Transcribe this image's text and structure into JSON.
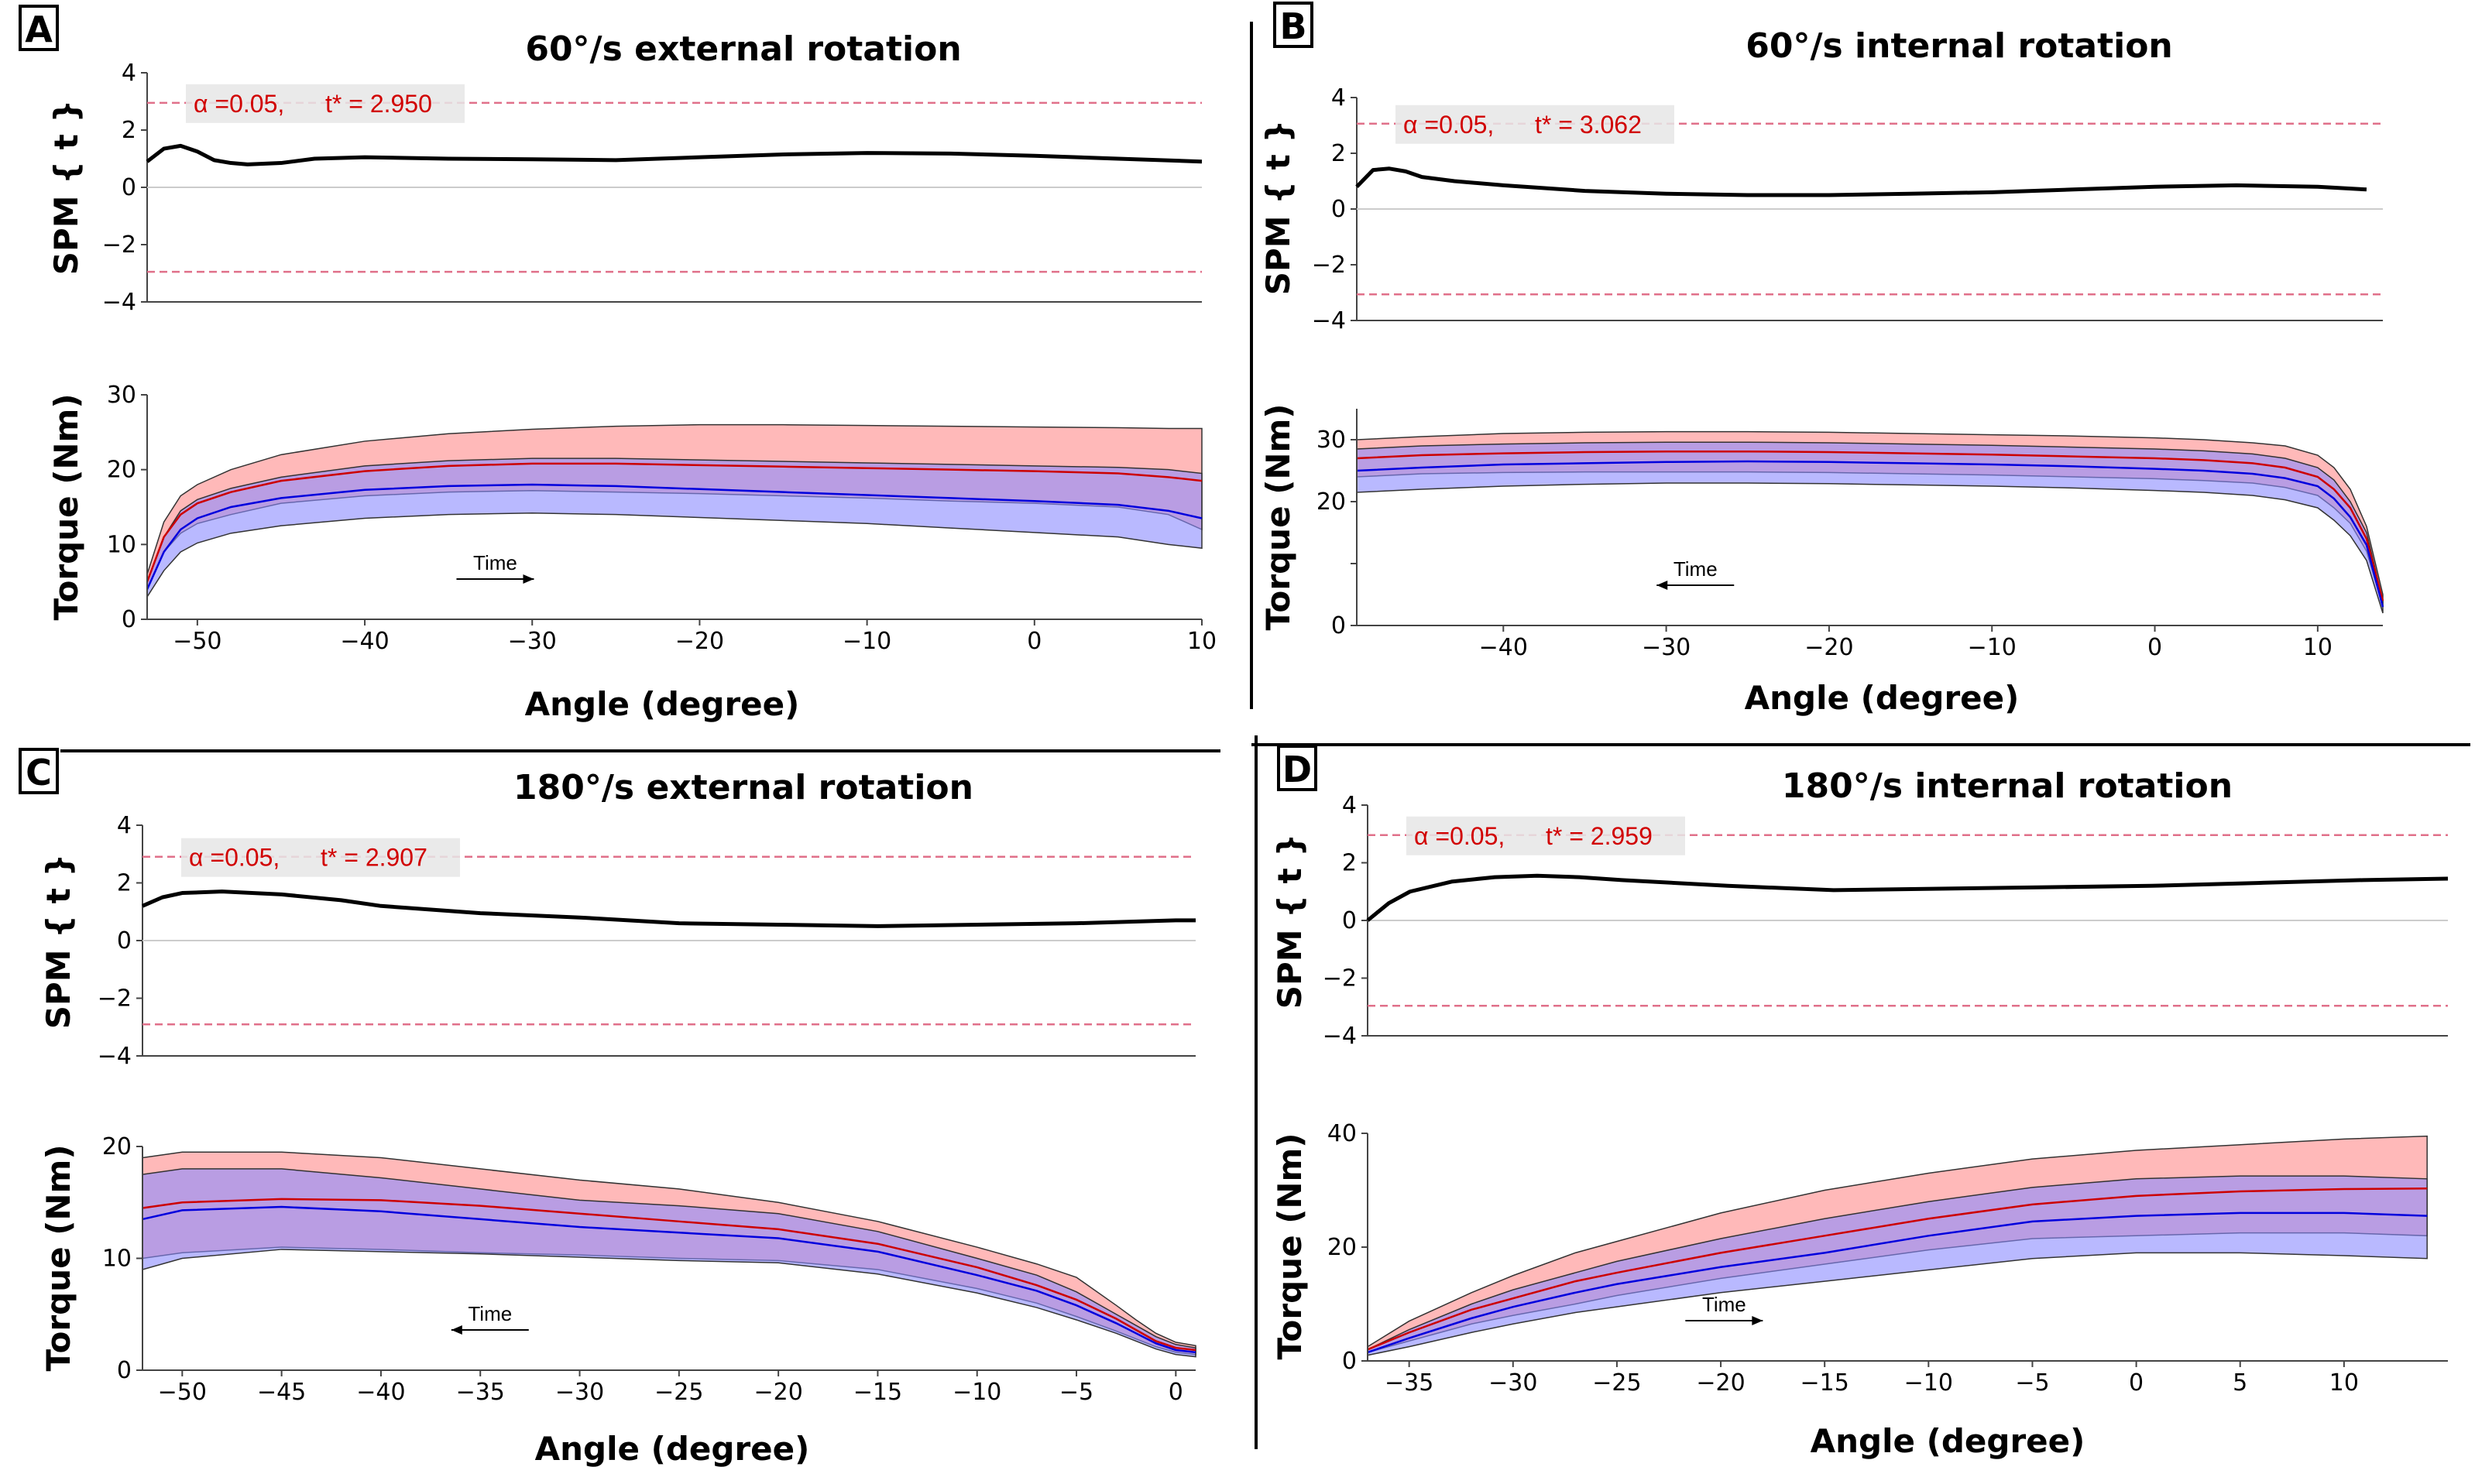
{
  "colors": {
    "spm_line": "#000000",
    "threshold": "#e0708a",
    "threshold_text": "#d10000",
    "threshold_box": "#e6e6e6",
    "zero_line": "#cccccc",
    "red_band": "#ff7f7f",
    "blue_band": "#8a8aff",
    "red_mean": "#cc0000",
    "blue_mean": "#0000dd"
  },
  "chart_data": [
    {
      "id": "A",
      "letter": "A",
      "title": "60°/s external rotation",
      "spm": {
        "type": "line",
        "ylabel": "SPM { t }",
        "ylim": [
          -4,
          4
        ],
        "yticks": [
          "4",
          "2",
          "0",
          "−2",
          "−4"
        ],
        "alpha_label": "α  =0.05,",
        "tstar_label": "t* = 2.950",
        "threshold": 2.95,
        "x": [
          -53,
          -52,
          -51,
          -50,
          -49,
          -48,
          -47,
          -45,
          -43,
          -40,
          -35,
          -30,
          -25,
          -20,
          -15,
          -10,
          -5,
          0,
          5,
          10
        ],
        "t": [
          0.9,
          1.35,
          1.45,
          1.25,
          0.95,
          0.85,
          0.8,
          0.85,
          1.0,
          1.05,
          1.0,
          0.98,
          0.95,
          1.05,
          1.15,
          1.2,
          1.18,
          1.1,
          1.0,
          0.9
        ]
      },
      "torque": {
        "type": "area",
        "ylabel": "Torque (Nm)",
        "xlabel": "Angle (degree)",
        "xlim": [
          -53,
          10
        ],
        "ylim": [
          0,
          30
        ],
        "xticks": [
          -50,
          -40,
          -30,
          -20,
          -10,
          0,
          10
        ],
        "xtick_labels": [
          "−50",
          "−40",
          "−30",
          "−20",
          "−10",
          "0",
          "10"
        ],
        "yticks": [
          0,
          10,
          20,
          30
        ],
        "ytick_labels": [
          "0",
          "10",
          "20",
          "30"
        ],
        "time_label": "Time",
        "time_direction": "right",
        "x": [
          -53,
          -52,
          -51,
          -50,
          -48,
          -45,
          -40,
          -35,
          -30,
          -25,
          -20,
          -15,
          -10,
          -5,
          0,
          5,
          8,
          10
        ],
        "red_mean": [
          5,
          11,
          14,
          15.5,
          17,
          18.5,
          19.8,
          20.5,
          20.8,
          20.8,
          20.6,
          20.4,
          20.2,
          20,
          19.8,
          19.5,
          19,
          18.5
        ],
        "red_upper": [
          6,
          13,
          16.5,
          18,
          20,
          22,
          23.8,
          24.8,
          25.4,
          25.8,
          26,
          26,
          25.9,
          25.8,
          25.7,
          25.6,
          25.5,
          25.5
        ],
        "red_lower": [
          4,
          9,
          11.5,
          12.8,
          14,
          15.5,
          16.5,
          17,
          17.2,
          17,
          16.8,
          16.5,
          16.2,
          15.8,
          15.5,
          15,
          14,
          12
        ],
        "blue_mean": [
          4,
          9,
          12,
          13.5,
          15,
          16.2,
          17.3,
          17.8,
          18,
          17.8,
          17.4,
          17,
          16.6,
          16.2,
          15.8,
          15.3,
          14.5,
          13.5
        ],
        "blue_upper": [
          5,
          11,
          14.5,
          16,
          17.5,
          19,
          20.5,
          21.2,
          21.5,
          21.5,
          21.3,
          21.1,
          20.9,
          20.7,
          20.5,
          20.3,
          20,
          19.5
        ],
        "blue_lower": [
          3,
          6.5,
          9,
          10.2,
          11.5,
          12.5,
          13.5,
          14,
          14.2,
          14,
          13.6,
          13.2,
          12.8,
          12.2,
          11.6,
          11,
          10,
          9.5
        ]
      }
    },
    {
      "id": "B",
      "letter": "B",
      "title": "60°/s internal rotation",
      "spm": {
        "type": "line",
        "ylabel": "SPM { t }",
        "ylim": [
          -4,
          4
        ],
        "yticks": [
          "4",
          "2",
          "0",
          "−2",
          "−4"
        ],
        "alpha_label": "α  =0.05,",
        "tstar_label": "t* = 3.062",
        "threshold": 3.062,
        "x": [
          -49,
          -48,
          -47,
          -46,
          -45,
          -43,
          -40,
          -35,
          -30,
          -25,
          -20,
          -15,
          -10,
          -5,
          0,
          5,
          10,
          13
        ],
        "t": [
          0.8,
          1.4,
          1.45,
          1.35,
          1.15,
          1.0,
          0.85,
          0.65,
          0.55,
          0.5,
          0.5,
          0.55,
          0.6,
          0.7,
          0.8,
          0.85,
          0.8,
          0.7
        ]
      },
      "torque": {
        "type": "area",
        "ylabel": "Torque (Nm)",
        "xlabel": "Angle (degree)",
        "xlim": [
          -49,
          14
        ],
        "ylim": [
          0,
          35
        ],
        "xticks": [
          -40,
          -30,
          -20,
          -10,
          0,
          10
        ],
        "xtick_labels": [
          "−40",
          "−30",
          "−20",
          "−10",
          "0",
          "10"
        ],
        "yticks": [
          0,
          10,
          20,
          30
        ],
        "ytick_labels": [
          "0",
          "",
          "20",
          "30"
        ],
        "time_label": "Time",
        "time_direction": "left",
        "x": [
          -49,
          -45,
          -40,
          -35,
          -30,
          -25,
          -20,
          -15,
          -10,
          -5,
          0,
          3,
          6,
          8,
          10,
          11,
          12,
          13,
          14
        ],
        "red_mean": [
          27,
          27.5,
          27.8,
          28,
          28.1,
          28.1,
          28,
          27.8,
          27.6,
          27.3,
          27,
          26.7,
          26.2,
          25.5,
          24,
          22,
          19,
          14,
          4
        ],
        "red_upper": [
          30,
          30.5,
          31,
          31.2,
          31.3,
          31.3,
          31.2,
          31,
          30.8,
          30.6,
          30.3,
          30,
          29.5,
          29,
          27.5,
          25.5,
          22,
          16,
          5
        ],
        "red_lower": [
          24,
          24.5,
          24.7,
          24.8,
          24.8,
          24.8,
          24.7,
          24.5,
          24.3,
          24,
          23.7,
          23.4,
          23,
          22.3,
          21,
          19,
          16.5,
          12,
          3
        ],
        "blue_mean": [
          25,
          25.5,
          26,
          26.2,
          26.4,
          26.5,
          26.4,
          26.2,
          26,
          25.7,
          25.3,
          25,
          24.5,
          23.8,
          22.5,
          20.5,
          17.5,
          13,
          3
        ],
        "blue_upper": [
          28.5,
          29,
          29.3,
          29.5,
          29.6,
          29.6,
          29.5,
          29.3,
          29.1,
          28.8,
          28.5,
          28.2,
          27.7,
          27,
          25.5,
          23.5,
          20,
          15,
          4
        ],
        "blue_lower": [
          21.5,
          22,
          22.5,
          22.8,
          23,
          23,
          22.9,
          22.7,
          22.5,
          22.2,
          21.8,
          21.5,
          21,
          20.3,
          19,
          17,
          14.5,
          10.5,
          2
        ]
      }
    },
    {
      "id": "C",
      "letter": "C",
      "title": "180°/s external rotation",
      "spm": {
        "type": "line",
        "ylabel": "SPM { t }",
        "ylim": [
          -4,
          4
        ],
        "yticks": [
          "4",
          "2",
          "0",
          "−2",
          "−4"
        ],
        "alpha_label": "α  =0.05,",
        "tstar_label": "t* = 2.907",
        "threshold": 2.907,
        "x": [
          -52,
          -51,
          -50,
          -48,
          -45,
          -42,
          -40,
          -35,
          -30,
          -25,
          -20,
          -15,
          -10,
          -5,
          0,
          1
        ],
        "t": [
          1.2,
          1.5,
          1.65,
          1.7,
          1.6,
          1.4,
          1.2,
          0.95,
          0.8,
          0.6,
          0.55,
          0.5,
          0.55,
          0.6,
          0.7,
          0.7
        ]
      },
      "torque": {
        "type": "area",
        "ylabel": "Torque (Nm)",
        "xlabel": "Angle (degree)",
        "xlim": [
          -52,
          1
        ],
        "ylim": [
          0,
          20
        ],
        "xticks": [
          -50,
          -45,
          -40,
          -35,
          -30,
          -25,
          -20,
          -15,
          -10,
          -5,
          0
        ],
        "xtick_labels": [
          "−50",
          "−45",
          "−40",
          "−35",
          "−30",
          "−25",
          "−20",
          "−15",
          "−10",
          "−5",
          "0"
        ],
        "yticks": [
          0,
          10,
          20
        ],
        "ytick_labels": [
          "0",
          "10",
          "20"
        ],
        "time_label": "Time",
        "time_direction": "left",
        "x": [
          -52,
          -50,
          -45,
          -40,
          -35,
          -30,
          -25,
          -20,
          -15,
          -10,
          -7,
          -5,
          -3,
          -2,
          -1,
          0,
          1
        ],
        "red_mean": [
          14.5,
          15,
          15.3,
          15.2,
          14.7,
          14,
          13.3,
          12.6,
          11.3,
          9.2,
          7.6,
          6.3,
          4.6,
          3.6,
          2.6,
          2,
          1.8
        ],
        "red_upper": [
          19,
          19.5,
          19.5,
          19,
          18,
          17,
          16.2,
          15,
          13.3,
          11,
          9.5,
          8.3,
          5.8,
          4.5,
          3.3,
          2.5,
          2.2
        ],
        "red_lower": [
          10,
          10.5,
          11,
          10.8,
          10.5,
          10.3,
          10,
          9.8,
          9,
          7.3,
          6,
          4.8,
          3.5,
          2.8,
          2.1,
          1.6,
          1.4
        ],
        "blue_mean": [
          13.5,
          14.3,
          14.6,
          14.2,
          13.5,
          12.8,
          12.3,
          11.8,
          10.6,
          8.5,
          7.1,
          5.8,
          4.2,
          3.3,
          2.4,
          1.8,
          1.6
        ],
        "blue_upper": [
          17.5,
          18,
          18,
          17.2,
          16.2,
          15.2,
          14.7,
          14,
          12.4,
          10,
          8.5,
          7,
          5,
          4,
          3,
          2.3,
          2
        ],
        "blue_lower": [
          9,
          10,
          10.8,
          10.6,
          10.4,
          10.1,
          9.8,
          9.6,
          8.6,
          6.9,
          5.6,
          4.5,
          3.3,
          2.6,
          1.9,
          1.4,
          1.2
        ]
      }
    },
    {
      "id": "D",
      "letter": "D",
      "title": "180°/s internal rotation",
      "spm": {
        "type": "line",
        "ylabel": "SPM { t }",
        "ylim": [
          -4,
          4
        ],
        "yticks": [
          "4",
          "2",
          "0",
          "−2",
          "−4"
        ],
        "alpha_label": "α  =0.05,",
        "tstar_label": "t* = 2.959",
        "threshold": 2.959,
        "x": [
          -37,
          -36,
          -35,
          -33,
          -31,
          -29,
          -27,
          -25,
          -20,
          -15,
          -10,
          -5,
          0,
          5,
          10,
          14
        ],
        "t": [
          0,
          0.6,
          1.0,
          1.35,
          1.5,
          1.55,
          1.5,
          1.4,
          1.2,
          1.05,
          1.1,
          1.15,
          1.2,
          1.3,
          1.4,
          1.45
        ]
      },
      "torque": {
        "type": "area",
        "ylabel": "Torque (Nm)",
        "xlabel": "Angle (degree)",
        "xlim": [
          -37,
          15
        ],
        "ylim": [
          0,
          40
        ],
        "xticks": [
          -35,
          -30,
          -25,
          -20,
          -15,
          -10,
          -5,
          0,
          5,
          10
        ],
        "xtick_labels": [
          "−35",
          "−30",
          "−25",
          "−20",
          "−15",
          "−10",
          "−5",
          "0",
          "5",
          "10"
        ],
        "yticks": [
          0,
          20,
          40
        ],
        "ytick_labels": [
          "0",
          "20",
          "40"
        ],
        "time_label": "Time",
        "time_direction": "right",
        "x": [
          -37,
          -35,
          -32,
          -30,
          -27,
          -25,
          -20,
          -15,
          -10,
          -5,
          0,
          5,
          10,
          14
        ],
        "red_mean": [
          2,
          5,
          9,
          11,
          14,
          15.5,
          19,
          22,
          25,
          27.5,
          29,
          29.8,
          30.2,
          30.3
        ],
        "red_upper": [
          2.5,
          7,
          12,
          15,
          19,
          21,
          26,
          30,
          33,
          35.5,
          37,
          38,
          39,
          39.5
        ],
        "red_lower": [
          1.5,
          3.5,
          6.5,
          8,
          10,
          11.5,
          14.5,
          17,
          19.5,
          21.5,
          22,
          22.5,
          22.5,
          22
        ],
        "blue_mean": [
          1.5,
          4,
          7.5,
          9.5,
          12,
          13.5,
          16.5,
          19,
          22,
          24.5,
          25.5,
          26,
          26,
          25.5
        ],
        "blue_upper": [
          2,
          5.5,
          10,
          12.5,
          15.5,
          17.5,
          21.5,
          25,
          28,
          30.5,
          32,
          32.5,
          32.5,
          32
        ],
        "blue_lower": [
          1,
          2.5,
          5,
          6.5,
          8.5,
          9.5,
          12,
          14,
          16,
          18,
          19,
          19,
          18.5,
          18
        ]
      }
    }
  ]
}
